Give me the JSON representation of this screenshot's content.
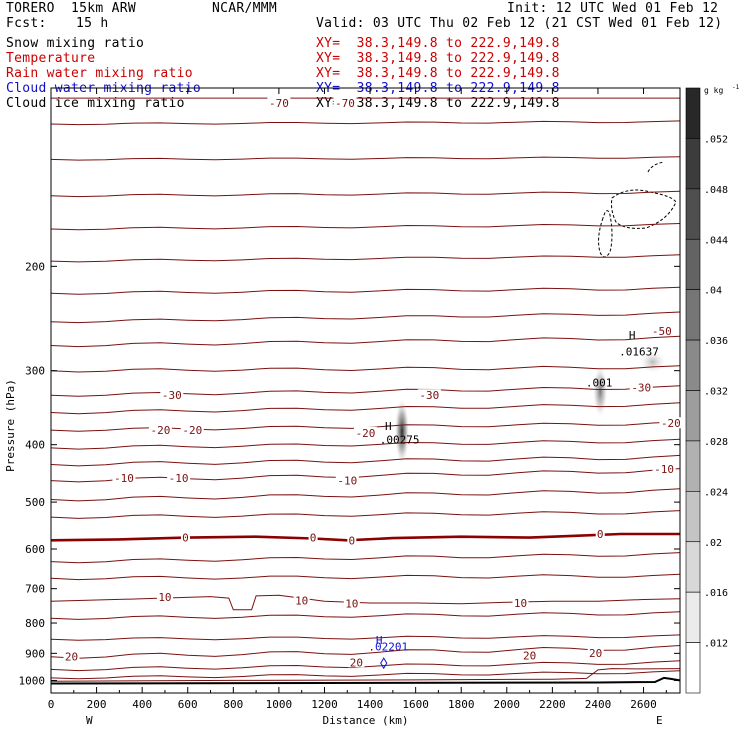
{
  "header": {
    "model": "TORERO  15km ARW",
    "org": "NCAR/MMM",
    "init": "Init: 12 UTC Wed 01 Feb 12",
    "fcst_label": "Fcst:",
    "fcst_value": "15 h",
    "valid": "Valid: 03 UTC Thu 02 Feb 12 (21 CST Wed 01 Feb 12)"
  },
  "fields": [
    {
      "name": "Snow mixing ratio",
      "xy": "XY=  38.3,149.8 to 222.9,149.8",
      "color": "#000000"
    },
    {
      "name": "Temperature",
      "xy": "XY=  38.3,149.8 to 222.9,149.8",
      "color": "#cc0000"
    },
    {
      "name": "Rain water mixing ratio",
      "xy": "XY=  38.3,149.8 to 222.9,149.8",
      "color": "#cc0000"
    },
    {
      "name": "Cloud water mixing ratio",
      "xy": "XY=  38.3,149.8 to 222.9,149.8",
      "color": "#1010cc"
    },
    {
      "name": "Cloud ice mixing ratio",
      "xy": "XY=  38.3,149.8 to 222.9,149.8",
      "color": "#000000"
    }
  ],
  "colors": {
    "temperature": "#7a1010",
    "freezing_line": "#8b0000",
    "cloud_water": "#1010cc",
    "terrain": "#000000"
  },
  "chart_data": {
    "type": "cross-section",
    "xlabel": "Distance (km)",
    "ylabel": "Pressure (hPa)",
    "xlim": [
      0,
      2760
    ],
    "ylim": [
      1050,
      100
    ],
    "y_scale": "log",
    "x_ticks": [
      "0",
      "200",
      "400",
      "600",
      "800",
      "1000",
      "1200",
      "1400",
      "1600",
      "1800",
      "2000",
      "2200",
      "2400",
      "2600"
    ],
    "x_tick_values": [
      0,
      200,
      400,
      600,
      800,
      1000,
      1200,
      1400,
      1600,
      1800,
      2000,
      2200,
      2400,
      2600
    ],
    "y_ticks": [
      "200",
      "300",
      "400",
      "500",
      "600",
      "700",
      "800",
      "900",
      "1000"
    ],
    "y_tick_values": [
      200,
      300,
      400,
      500,
      600,
      700,
      800,
      900,
      1000
    ],
    "x_end_labels": {
      "left": "W",
      "right": "E"
    },
    "temperature_labels": [
      {
        "text": "-70",
        "x": 1000,
        "p": 106
      },
      {
        "text": "-70",
        "x": 1290,
        "p": 106
      },
      {
        "text": "-50",
        "x": 2680,
        "p": 257
      },
      {
        "text": "-30",
        "x": 530,
        "p": 330
      },
      {
        "text": "-30",
        "x": 1660,
        "p": 330
      },
      {
        "text": "-30",
        "x": 2590,
        "p": 320
      },
      {
        "text": "-20",
        "x": 480,
        "p": 378
      },
      {
        "text": "-20",
        "x": 620,
        "p": 378
      },
      {
        "text": "-20",
        "x": 1380,
        "p": 382
      },
      {
        "text": "-20",
        "x": 2720,
        "p": 368
      },
      {
        "text": "-10",
        "x": 320,
        "p": 455
      },
      {
        "text": "-10",
        "x": 560,
        "p": 455
      },
      {
        "text": "-10",
        "x": 1300,
        "p": 460
      },
      {
        "text": "-10",
        "x": 2690,
        "p": 440
      },
      {
        "text": "0",
        "x": 590,
        "p": 574
      },
      {
        "text": "0",
        "x": 1150,
        "p": 574
      },
      {
        "text": "0",
        "x": 1320,
        "p": 580
      },
      {
        "text": "0",
        "x": 2410,
        "p": 566
      },
      {
        "text": "10",
        "x": 500,
        "p": 723
      },
      {
        "text": "10",
        "x": 1100,
        "p": 733
      },
      {
        "text": "10",
        "x": 1320,
        "p": 742
      },
      {
        "text": "10",
        "x": 2060,
        "p": 740
      },
      {
        "text": "20",
        "x": 90,
        "p": 912
      },
      {
        "text": "20",
        "x": 1340,
        "p": 932
      },
      {
        "text": "20",
        "x": 2100,
        "p": 908
      },
      {
        "text": "20",
        "x": 2390,
        "p": 898
      }
    ],
    "extrema_labels": [
      {
        "text": "H",
        "x": 1480,
        "p": 378,
        "color": "#000000"
      },
      {
        "text": ".00275",
        "x": 1530,
        "p": 398,
        "color": "#000000"
      },
      {
        "text": "H",
        "x": 2550,
        "p": 265,
        "color": "#000000"
      },
      {
        "text": ".01637",
        "x": 2580,
        "p": 283,
        "color": "#000000"
      },
      {
        "text": ".001",
        "x": 2405,
        "p": 319,
        "color": "#000000"
      },
      {
        "text": "H",
        "x": 1440,
        "p": 868,
        "color": "#1010cc"
      },
      {
        "text": ".02201",
        "x": 1480,
        "p": 890,
        "color": "#1010cc"
      }
    ],
    "colorbar": {
      "unit": "g kg",
      "unit_exp": "-1",
      "labels": [
        ".052",
        ".048",
        ".044",
        ".04",
        ".036",
        ".032",
        ".028",
        ".024",
        ".02",
        ".016",
        ".012"
      ]
    }
  }
}
